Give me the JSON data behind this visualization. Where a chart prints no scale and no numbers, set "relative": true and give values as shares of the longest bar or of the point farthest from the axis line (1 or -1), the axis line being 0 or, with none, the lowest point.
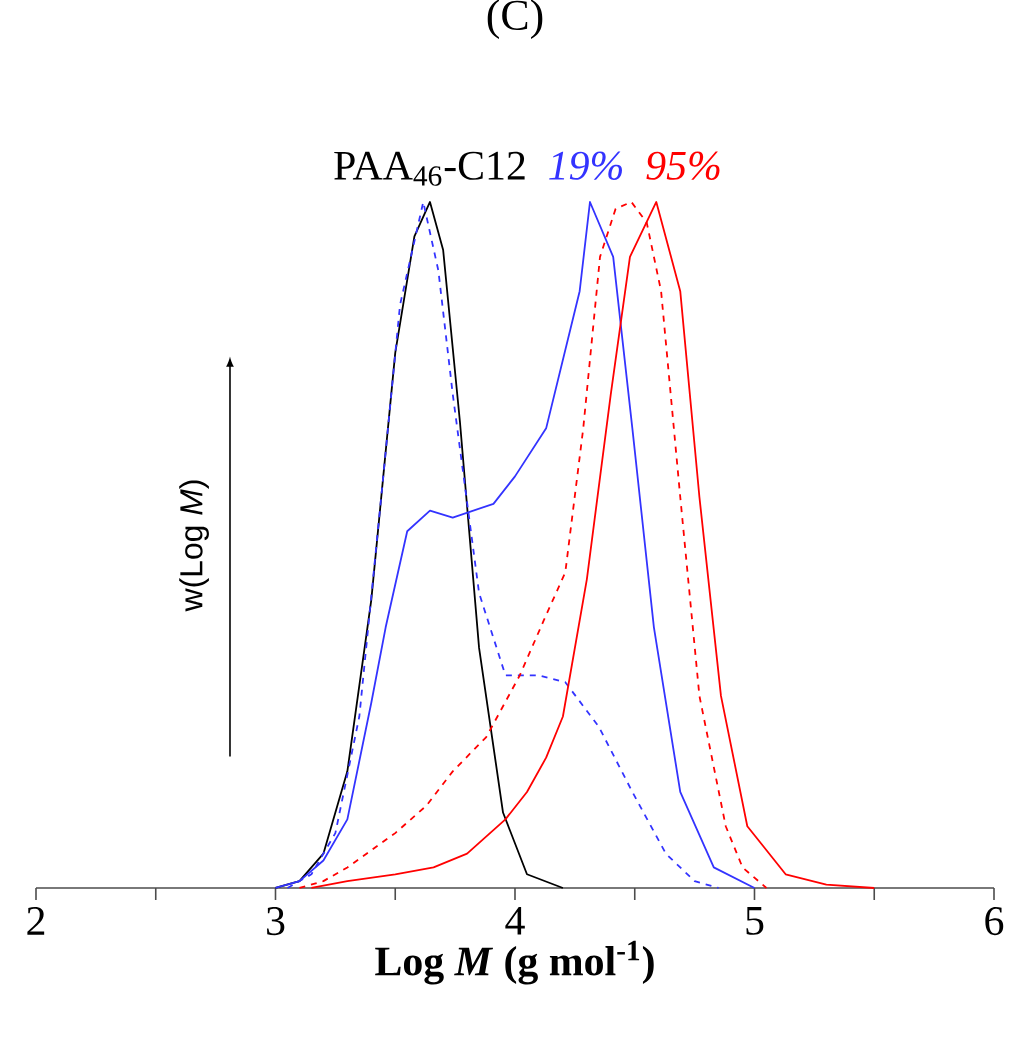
{
  "chart_data": {
    "type": "line",
    "title": "(C)",
    "xlabel": "Log *M* (g mol$^{-1}$)",
    "ylabel": "w(Log *M*)",
    "relative": true,
    "xlim": [
      2,
      6
    ],
    "xticks": [
      2,
      {
        "value": 2.5,
        "label": null
      },
      3,
      {
        "value": 3.5,
        "label": null
      },
      4,
      {
        "value": 4.5,
        "label": null
      },
      5,
      {
        "value": 5.5,
        "label": null
      },
      6
    ],
    "series": [
      {
        "name": "PAA$_{46}$-C12",
        "color": "#000000",
        "line_style": "solid",
        "x": [
          3.0,
          3.1,
          3.2,
          3.3,
          3.4,
          3.5,
          3.58,
          3.645,
          3.7,
          3.77,
          3.85,
          3.95,
          4.05,
          4.2
        ],
        "values": [
          0,
          0.01,
          0.05,
          0.17,
          0.42,
          0.78,
          0.95,
          1,
          0.93,
          0.68,
          0.35,
          0.11,
          0.02,
          0
        ]
      },
      {
        "color": "#3333ff",
        "line_style": "dashed",
        "x": [
          3.05,
          3.15,
          3.25,
          3.35,
          3.45,
          3.52,
          3.617,
          3.68,
          3.74,
          3.85,
          3.96,
          4.1,
          4.21,
          4.35,
          4.49,
          4.63,
          4.75,
          4.85
        ],
        "values": [
          0,
          0.02,
          0.08,
          0.25,
          0.6,
          0.85,
          1,
          0.9,
          0.72,
          0.43,
          0.31,
          0.31,
          0.3,
          0.235,
          0.14,
          0.05,
          0.01,
          0
        ]
      },
      {
        "name": "19%",
        "color": "#3333ff",
        "line_style": "solid",
        "x": [
          3.0,
          3.1,
          3.2,
          3.3,
          3.4,
          3.46,
          3.55,
          3.645,
          3.74,
          3.91,
          4.0,
          4.13,
          4.27,
          4.313,
          4.41,
          4.49,
          4.58,
          4.69,
          4.83,
          5.0
        ],
        "values": [
          0,
          0.01,
          0.04,
          0.1,
          0.27,
          0.38,
          0.52,
          0.55,
          0.54,
          0.56,
          0.6,
          0.67,
          0.87,
          1,
          0.92,
          0.67,
          0.38,
          0.14,
          0.03,
          0
        ]
      },
      {
        "color": "#ff0000",
        "line_style": "dashed",
        "x": [
          3.1,
          3.2,
          3.3,
          3.38,
          3.5,
          3.63,
          3.74,
          3.88,
          4.02,
          4.12,
          4.21,
          4.285,
          4.355,
          4.42,
          4.486,
          4.55,
          4.61,
          4.69,
          4.77,
          4.88,
          4.95,
          5.05
        ],
        "values": [
          0,
          0.01,
          0.03,
          0.05,
          0.08,
          0.12,
          0.17,
          0.22,
          0.31,
          0.39,
          0.46,
          0.67,
          0.92,
          0.99,
          1,
          0.97,
          0.87,
          0.57,
          0.28,
          0.09,
          0.03,
          0
        ]
      },
      {
        "name": "95%",
        "color": "#ff0000",
        "line_style": "solid",
        "x": [
          3.15,
          3.3,
          3.5,
          3.66,
          3.8,
          3.96,
          4.05,
          4.13,
          4.2,
          4.3,
          4.4,
          4.48,
          4.59,
          4.69,
          4.77,
          4.86,
          4.97,
          5.13,
          5.3,
          5.5
        ],
        "values": [
          0,
          0.01,
          0.02,
          0.03,
          0.05,
          0.1,
          0.14,
          0.19,
          0.25,
          0.45,
          0.72,
          0.92,
          1,
          0.87,
          0.57,
          0.28,
          0.09,
          0.02,
          0.005,
          0
        ]
      }
    ]
  }
}
